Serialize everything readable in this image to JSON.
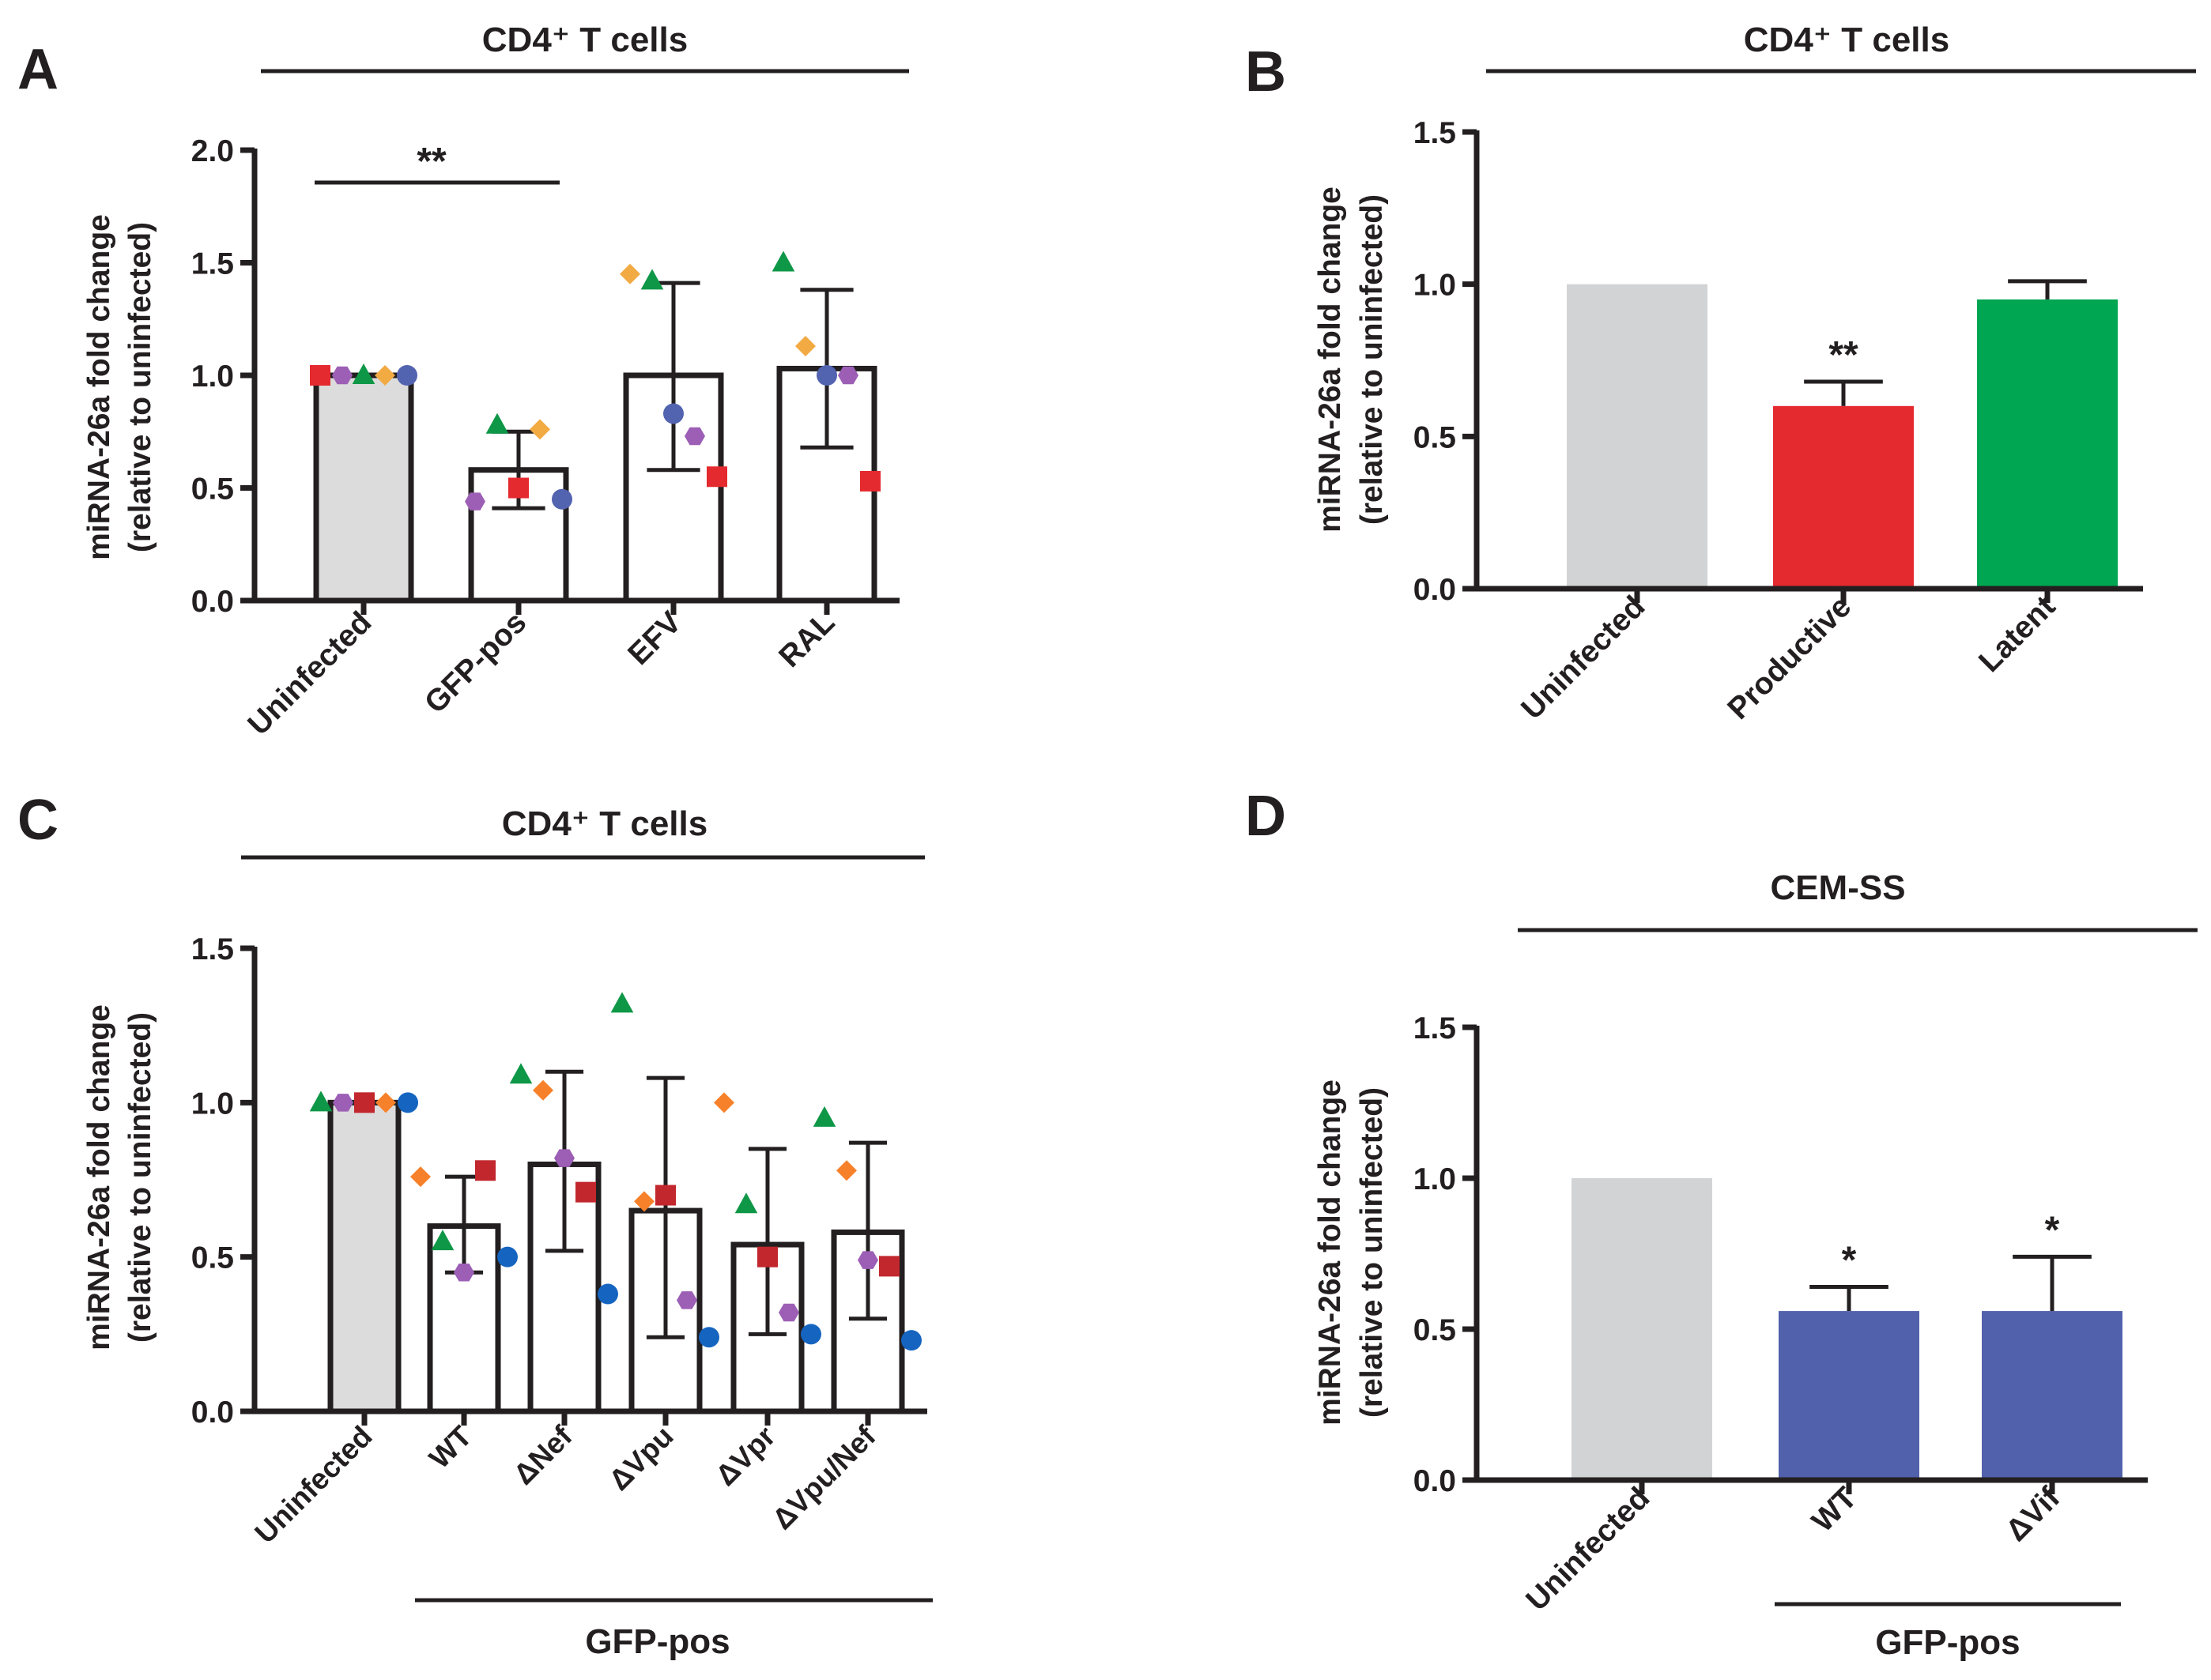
{
  "chart_data": [
    {
      "panel": "A",
      "type": "bar",
      "style": "outline",
      "title": "CD4⁺ T cells",
      "ylabel": [
        "miRNA-26a fold change",
        "(relative to uninfected)"
      ],
      "ylim": [
        0,
        2.0
      ],
      "yticks": [
        "0.0",
        "0.5",
        "1.0",
        "1.5",
        "2.0"
      ],
      "categories": [
        "Uninfected",
        "GFP-pos",
        "EFV",
        "RAL"
      ],
      "values": [
        1.0,
        0.58,
        1.0,
        1.03
      ],
      "errors": [
        [
          1.0,
          1.0
        ],
        [
          0.41,
          0.75
        ],
        [
          0.58,
          1.41
        ],
        [
          0.68,
          1.38
        ]
      ],
      "significance": {
        "label": "**",
        "from": "Uninfected",
        "to": "GFP-pos"
      },
      "points": [
        [
          {
            "shape": "square",
            "color": "#e42a2f",
            "y": 1.0
          },
          {
            "shape": "hexagon",
            "color": "#9c5fb5",
            "y": 1.0
          },
          {
            "shape": "triangle",
            "color": "#0e9747",
            "y": 1.0
          },
          {
            "shape": "diamond",
            "color": "#f2aa43",
            "y": 1.0
          },
          {
            "shape": "circle",
            "color": "#5263b0",
            "y": 1.0
          }
        ],
        [
          {
            "shape": "hexagon",
            "color": "#9c5fb5",
            "y": 0.44
          },
          {
            "shape": "triangle",
            "color": "#0e9747",
            "y": 0.78
          },
          {
            "shape": "square",
            "color": "#e42a2f",
            "y": 0.5
          },
          {
            "shape": "diamond",
            "color": "#f2aa43",
            "y": 0.76
          },
          {
            "shape": "circle",
            "color": "#5263b0",
            "y": 0.45
          }
        ],
        [
          {
            "shape": "diamond",
            "color": "#f2aa43",
            "y": 1.45
          },
          {
            "shape": "triangle",
            "color": "#0e9747",
            "y": 1.42
          },
          {
            "shape": "circle",
            "color": "#5263b0",
            "y": 0.83
          },
          {
            "shape": "hexagon",
            "color": "#9c5fb5",
            "y": 0.73
          },
          {
            "shape": "square",
            "color": "#e42a2f",
            "y": 0.55
          }
        ],
        [
          {
            "shape": "triangle",
            "color": "#0e9747",
            "y": 1.5
          },
          {
            "shape": "diamond",
            "color": "#f2aa43",
            "y": 1.13
          },
          {
            "shape": "circle",
            "color": "#5263b0",
            "y": 1.0
          },
          {
            "shape": "hexagon",
            "color": "#9c5fb5",
            "y": 1.0
          },
          {
            "shape": "square",
            "color": "#e42a2f",
            "y": 0.53
          }
        ]
      ]
    },
    {
      "panel": "B",
      "type": "bar",
      "style": "filled",
      "title": "CD4⁺ T cells",
      "ylabel": [
        "miRNA-26a fold change",
        "(relative to uninfected)"
      ],
      "ylim": [
        0,
        1.5
      ],
      "yticks": [
        "0.0",
        "0.5",
        "1.0",
        "1.5"
      ],
      "categories": [
        "Uninfected",
        "Productive",
        "Latent"
      ],
      "values": [
        1.0,
        0.6,
        0.95
      ],
      "errors": [
        null,
        0.68,
        1.01
      ],
      "colors": [
        "#d1d3d4",
        "#e42a2f",
        "#00a651"
      ],
      "stars": [
        "",
        "**",
        ""
      ]
    },
    {
      "panel": "C",
      "type": "bar",
      "style": "outline",
      "title": "CD4⁺ T cells",
      "ylabel": [
        "miRNA-26a fold change",
        "(relative to uninfected)"
      ],
      "ylim": [
        0,
        1.5
      ],
      "yticks": [
        "0.0",
        "0.5",
        "1.0",
        "1.5"
      ],
      "categories": [
        "Uninfected",
        "WT",
        "ΔNef",
        "ΔVpu",
        "ΔVpr",
        "ΔVpu/Nef"
      ],
      "group_label": "GFP-pos",
      "values": [
        1.0,
        0.6,
        0.8,
        0.65,
        0.54,
        0.58
      ],
      "errors": [
        [
          1.0,
          1.0
        ],
        [
          0.45,
          0.76
        ],
        [
          0.52,
          1.1
        ],
        [
          0.24,
          1.08
        ],
        [
          0.25,
          0.85
        ],
        [
          0.3,
          0.87
        ]
      ],
      "points": [
        [
          {
            "shape": "triangle",
            "color": "#0e9747",
            "y": 1.0
          },
          {
            "shape": "hexagon",
            "color": "#9c5fb5",
            "y": 1.0
          },
          {
            "shape": "square",
            "color": "#c1272d",
            "y": 1.0
          },
          {
            "shape": "diamond",
            "color": "#f7812a",
            "y": 1.0
          },
          {
            "shape": "circle",
            "color": "#1565c0",
            "y": 1.0
          }
        ],
        [
          {
            "shape": "diamond",
            "color": "#f7812a",
            "y": 0.76
          },
          {
            "shape": "triangle",
            "color": "#0e9747",
            "y": 0.55
          },
          {
            "shape": "hexagon",
            "color": "#9c5fb5",
            "y": 0.45
          },
          {
            "shape": "square",
            "color": "#c1272d",
            "y": 0.78
          },
          {
            "shape": "circle",
            "color": "#1565c0",
            "y": 0.5
          }
        ],
        [
          {
            "shape": "triangle",
            "color": "#0e9747",
            "y": 1.09
          },
          {
            "shape": "diamond",
            "color": "#f7812a",
            "y": 1.04
          },
          {
            "shape": "hexagon",
            "color": "#9c5fb5",
            "y": 0.82
          },
          {
            "shape": "square",
            "color": "#c1272d",
            "y": 0.71
          },
          {
            "shape": "circle",
            "color": "#1565c0",
            "y": 0.38
          }
        ],
        [
          {
            "shape": "triangle",
            "color": "#0e9747",
            "y": 1.32
          },
          {
            "shape": "diamond",
            "color": "#f7812a",
            "y": 0.68
          },
          {
            "shape": "square",
            "color": "#c1272d",
            "y": 0.7
          },
          {
            "shape": "hexagon",
            "color": "#9c5fb5",
            "y": 0.36
          },
          {
            "shape": "circle",
            "color": "#1565c0",
            "y": 0.24
          }
        ],
        [
          {
            "shape": "diamond",
            "color": "#f7812a",
            "y": 1.0
          },
          {
            "shape": "triangle",
            "color": "#0e9747",
            "y": 0.67
          },
          {
            "shape": "square",
            "color": "#c1272d",
            "y": 0.5
          },
          {
            "shape": "hexagon",
            "color": "#9c5fb5",
            "y": 0.32
          },
          {
            "shape": "circle",
            "color": "#1565c0",
            "y": 0.25
          }
        ],
        [
          {
            "shape": "triangle",
            "color": "#0e9747",
            "y": 0.95
          },
          {
            "shape": "diamond",
            "color": "#f7812a",
            "y": 0.78
          },
          {
            "shape": "hexagon",
            "color": "#9c5fb5",
            "y": 0.49
          },
          {
            "shape": "square",
            "color": "#c1272d",
            "y": 0.47
          },
          {
            "shape": "circle",
            "color": "#1565c0",
            "y": 0.23
          }
        ]
      ]
    },
    {
      "panel": "D",
      "type": "bar",
      "style": "filled",
      "title": "CEM-SS",
      "ylabel": [
        "miRNA-26a fold change",
        "(relative to uninfected)"
      ],
      "ylim": [
        0,
        1.5
      ],
      "yticks": [
        "0.0",
        "0.5",
        "1.0",
        "1.5"
      ],
      "categories": [
        "Uninfected",
        "WT",
        "ΔVif"
      ],
      "group_label": "GFP-pos",
      "values": [
        1.0,
        0.56,
        0.56
      ],
      "errors": [
        null,
        0.64,
        0.74
      ],
      "colors": [
        "#d1d3d4",
        "#5161ac",
        "#5161ac"
      ],
      "stars": [
        "",
        "*",
        "*"
      ]
    }
  ]
}
